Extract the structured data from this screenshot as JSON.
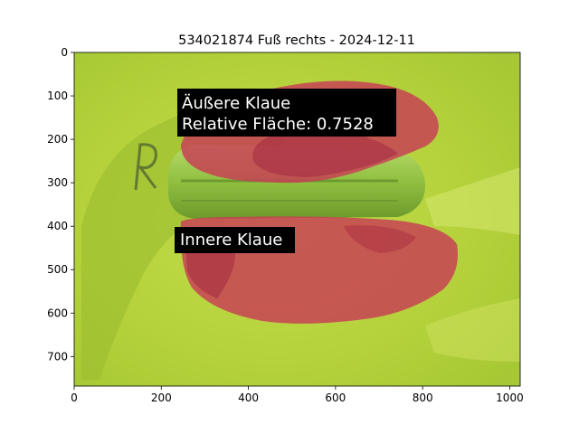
{
  "chart_data": {
    "type": "image",
    "title": "534021874 Fuß rechts - 2024-12-11",
    "xlim": [
      0,
      1024
    ],
    "ylim": [
      768,
      0
    ],
    "xticks": [
      0,
      200,
      400,
      600,
      800,
      1000
    ],
    "yticks": [
      0,
      100,
      200,
      300,
      400,
      500,
      600,
      700
    ],
    "annotations": [
      {
        "lines": [
          "Äußere Klaue",
          "Relative Fläche: 0.7528"
        ]
      },
      {
        "lines": [
          "Innere Klaue"
        ]
      }
    ],
    "grid": false,
    "colors": {
      "background": "#b2cf3a",
      "mask": "#c83c55",
      "label_box": "#000000",
      "label_text": "#ffffff"
    }
  }
}
